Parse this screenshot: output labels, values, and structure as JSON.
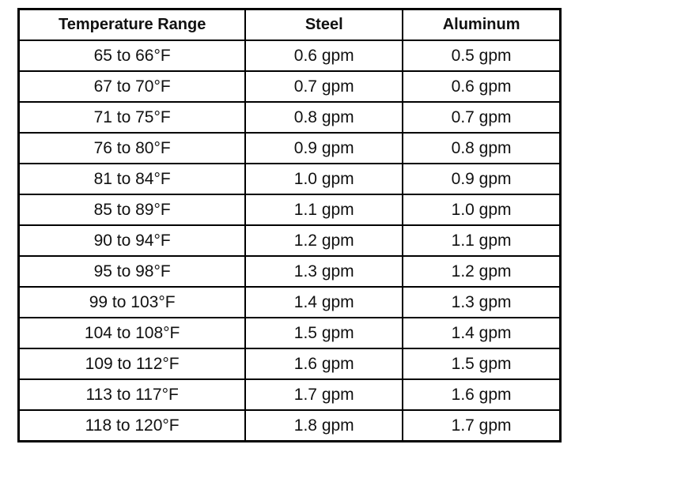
{
  "table": {
    "header": [
      "Temperature Range",
      "Steel",
      "Aluminum"
    ],
    "rows": [
      [
        "65 to 66°F",
        "0.6 gpm",
        "0.5 gpm"
      ],
      [
        "67 to 70°F",
        "0.7 gpm",
        "0.6 gpm"
      ],
      [
        "71 to 75°F",
        "0.8 gpm",
        "0.7 gpm"
      ],
      [
        "76 to 80°F",
        "0.9 gpm",
        "0.8 gpm"
      ],
      [
        "81 to 84°F",
        "1.0 gpm",
        "0.9 gpm"
      ],
      [
        "85 to 89°F",
        "1.1 gpm",
        "1.0 gpm"
      ],
      [
        "90 to 94°F",
        "1.2 gpm",
        "1.1 gpm"
      ],
      [
        "95 to 98°F",
        "1.3 gpm",
        "1.2 gpm"
      ],
      [
        "99 to 103°F",
        "1.4 gpm",
        "1.3 gpm"
      ],
      [
        "104 to 108°F",
        "1.5 gpm",
        "1.4 gpm"
      ],
      [
        "109 to 112°F",
        "1.6 gpm",
        "1.5 gpm"
      ],
      [
        "113 to 117°F",
        "1.7 gpm",
        "1.6 gpm"
      ],
      [
        "118 to 120°F",
        "1.8 gpm",
        "1.7 gpm"
      ]
    ]
  }
}
